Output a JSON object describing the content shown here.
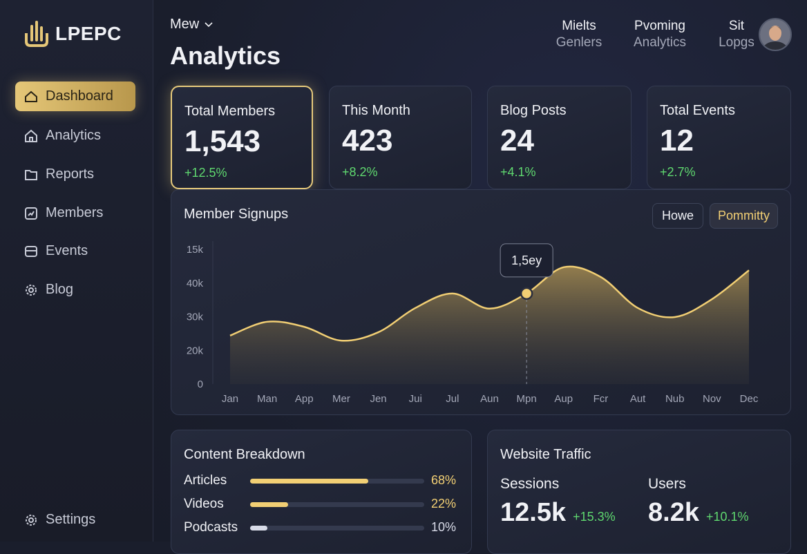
{
  "sidebar": {
    "logo": "LPEPC",
    "nav": [
      "Dashboard",
      "Analytics",
      "Reports",
      "Members",
      "Events",
      "Blog"
    ],
    "settings": "Settings"
  },
  "header": {
    "menu": "Mew",
    "title": "Analytics",
    "links": [
      {
        "top": "Mielts",
        "bottom": "Genlers"
      },
      {
        "top": "Pvoming",
        "bottom": "Analytics"
      },
      {
        "top": "Sit",
        "bottom": "Lopgs"
      }
    ]
  },
  "stats": [
    {
      "label": "Total Members",
      "value": "1,543",
      "change": "+12.5%"
    },
    {
      "label": "This Month",
      "value": "423",
      "change": "+8.2%"
    },
    {
      "label": "Blog Posts",
      "value": "24",
      "change": "+4.1%"
    },
    {
      "label": "Total Events",
      "value": "12",
      "change": "+2.7%"
    }
  ],
  "signups": {
    "type": "line",
    "title": "Member Signups",
    "buttons": [
      "Howe",
      "Pommitty"
    ],
    "categories": [
      "Jan",
      "Man",
      "App",
      "Mer",
      "Jen",
      "Jui",
      "Jul",
      "Aun",
      "Mpn",
      "Aup",
      "Fcr",
      "Aut",
      "Nub",
      "Nov",
      "Dec"
    ],
    "values": [
      14400,
      18500,
      17000,
      12900,
      15400,
      22600,
      26900,
      22400,
      26900,
      34700,
      31800,
      22600,
      19900,
      25200,
      33800
    ],
    "color": "#f2cf74",
    "ylim": [
      0,
      40000
    ],
    "y_labels": [
      "15k",
      "40k",
      "30k",
      "20k",
      "0"
    ],
    "tooltip": "1,5ey"
  },
  "content": {
    "title": "Content Breakdown",
    "items": [
      {
        "name": "Articles",
        "value": 68,
        "value_label": "68%",
        "color": "#f2cf74"
      },
      {
        "name": "Videos",
        "value": 22,
        "value_label": "22%",
        "color": "#f2cf74"
      },
      {
        "name": "Podcasts",
        "value": 10,
        "value_label": "10%",
        "color": "#d8dbe8"
      }
    ]
  },
  "traffic": {
    "title": "Website Traffic",
    "metrics": [
      {
        "label": "Sessions",
        "value": "12.5k",
        "change": "+15.3%"
      },
      {
        "label": "Users",
        "value": "8.2k",
        "change": "+10.1%"
      }
    ]
  }
}
